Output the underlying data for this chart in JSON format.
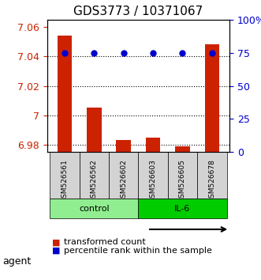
{
  "title": "GDS3773 / 10371067",
  "samples": [
    "GSM526561",
    "GSM526562",
    "GSM526602",
    "GSM526603",
    "GSM526605",
    "GSM526678"
  ],
  "transformed_counts": [
    7.054,
    7.005,
    6.983,
    6.985,
    6.979,
    7.048
  ],
  "percentile_ranks": [
    75,
    75,
    75,
    75,
    75,
    75
  ],
  "ylim_left": [
    6.975,
    7.065
  ],
  "ylim_right": [
    0,
    100
  ],
  "yticks_left": [
    6.98,
    7.0,
    7.02,
    7.04,
    7.06
  ],
  "yticks_right": [
    0,
    25,
    50,
    75,
    100
  ],
  "ytick_labels_left": [
    "6.98",
    "7",
    "7.02",
    "7.04",
    "7.06"
  ],
  "ytick_labels_right": [
    "0",
    "25",
    "50",
    "75",
    "100%"
  ],
  "groups": [
    {
      "label": "control",
      "indices": [
        0,
        1,
        2
      ],
      "color": "#90EE90"
    },
    {
      "label": "IL-6",
      "indices": [
        3,
        4,
        5
      ],
      "color": "#00CC00"
    }
  ],
  "bar_color": "#CC2200",
  "dot_color": "#0000CC",
  "bar_width": 0.5,
  "agent_label": "agent",
  "legend_bar_label": "transformed count",
  "legend_dot_label": "percentile rank within the sample",
  "background_color": "#ffffff",
  "plot_bg_color": "#ffffff",
  "label_area_color": "#d3d3d3",
  "title_fontsize": 11,
  "tick_fontsize": 9,
  "legend_fontsize": 8
}
